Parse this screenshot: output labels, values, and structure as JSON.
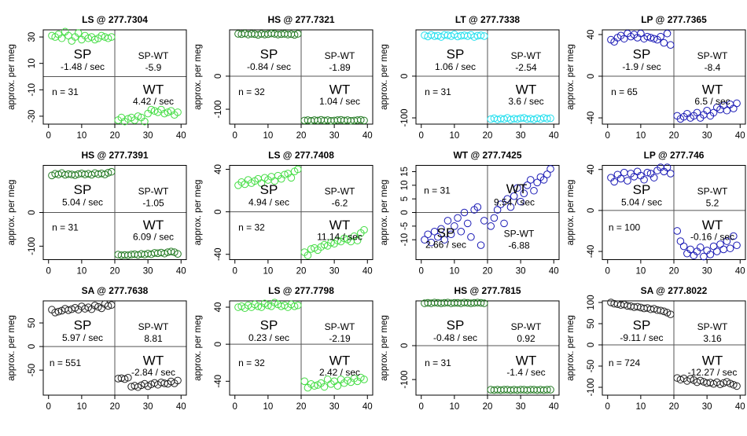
{
  "chart_data": [
    {
      "type": "scatter",
      "title": "LS @ 277.7304",
      "y_label": "approx. per meg",
      "color": "#44dd44",
      "x": [
        1,
        2,
        3,
        4,
        5,
        6,
        7,
        8,
        9,
        10,
        11,
        12,
        13,
        14,
        15,
        16,
        17,
        18,
        19,
        21,
        22,
        23,
        24,
        25,
        26,
        27,
        28,
        29,
        30,
        31,
        32,
        33,
        34,
        35,
        36,
        37,
        38,
        39
      ],
      "values": [
        31,
        30,
        32,
        29,
        34,
        31,
        27,
        30,
        33,
        28,
        31,
        29,
        30,
        28,
        29,
        31,
        30,
        29,
        30,
        -33,
        -31,
        -34,
        -32,
        -31,
        -33,
        -30,
        -31,
        -34,
        -28,
        -25,
        -26,
        -27,
        -25,
        -28,
        -27,
        -26,
        -29,
        -27
      ],
      "xlim": [
        -1.6,
        41.6
      ],
      "xticks": [
        0,
        10,
        20,
        30,
        40
      ],
      "ylim": [
        -36,
        35.4
      ],
      "yticks": [
        -30,
        -10,
        10,
        30
      ],
      "xline": 20,
      "yline": 0,
      "annotations": {
        "sp": "SP",
        "sp_rate": "-1.48 / sec",
        "sp_wt": "SP-WT",
        "sp_wt_value": "-5.9",
        "n": "n = 31",
        "wt": "WT",
        "wt_rate": "4.42 / sec"
      }
    },
    {
      "type": "scatter",
      "title": "HS @ 277.7321",
      "y_label": "approx. per meg",
      "color": "#237a23",
      "x": [
        1,
        2,
        3,
        4,
        5,
        6,
        7,
        8,
        9,
        10,
        11,
        12,
        13,
        14,
        15,
        16,
        17,
        18,
        19,
        21,
        22,
        23,
        24,
        25,
        26,
        27,
        28,
        29,
        30,
        31,
        32,
        33,
        34,
        35,
        36,
        37,
        38,
        39
      ],
      "values": [
        128,
        127,
        129,
        126,
        128,
        127,
        125,
        128,
        126,
        127,
        129,
        128,
        126,
        127,
        128,
        126,
        127,
        125,
        128,
        -134,
        -133,
        -135,
        -133,
        -134,
        -132,
        -134,
        -133,
        -135,
        -134,
        -133,
        -132,
        -134,
        -133,
        -135,
        -134,
        -133,
        -132,
        -134
      ],
      "xlim": [
        -1.6,
        41.6
      ],
      "xticks": [
        0,
        10,
        20,
        30,
        40
      ],
      "ylim": [
        -145,
        140
      ],
      "yticks": [
        -100,
        0
      ],
      "xline": 20,
      "yline": 0,
      "annotations": {
        "sp": "SP",
        "sp_rate": "-0.84 / sec",
        "sp_wt": "SP-WT",
        "sp_wt_value": "-1.89",
        "n": "n = 32",
        "wt": "WT",
        "wt_rate": "1.04 / sec"
      }
    },
    {
      "type": "scatter",
      "title": "LT @ 277.7338",
      "y_label": "approx. per meg",
      "color": "#22dfee",
      "x": [
        1,
        2,
        3,
        4,
        5,
        6,
        7,
        8,
        9,
        10,
        11,
        12,
        13,
        14,
        15,
        16,
        17,
        18,
        19,
        21,
        22,
        23,
        24,
        25,
        26,
        27,
        28,
        29,
        30,
        31,
        32,
        33,
        34,
        35,
        36,
        37,
        38,
        39
      ],
      "values": [
        98,
        95,
        99,
        96,
        97,
        94,
        99,
        98,
        96,
        100,
        95,
        97,
        98,
        96,
        99,
        94,
        97,
        98,
        96,
        -103,
        -101,
        -104,
        -102,
        -103,
        -100,
        -104,
        -102,
        -103,
        -101,
        -100,
        -103,
        -102,
        -104,
        -101,
        -103,
        -100,
        -102,
        -101
      ],
      "xlim": [
        -1.6,
        41.6
      ],
      "xticks": [
        0,
        10,
        20,
        30,
        40
      ],
      "ylim": [
        -115,
        111
      ],
      "yticks": [
        -100,
        0
      ],
      "xline": 20,
      "yline": 0,
      "annotations": {
        "sp": "SP",
        "sp_rate": "1.06 / sec",
        "sp_wt": "SP-WT",
        "sp_wt_value": "-2.54",
        "n": "n = 31",
        "wt": "WT",
        "wt_rate": "3.6 / sec"
      }
    },
    {
      "type": "scatter",
      "title": "LP @ 277.7365",
      "y_label": "approx. per meg",
      "color": "#1a1ab5",
      "x": [
        1,
        2,
        3,
        4,
        5,
        6,
        7,
        8,
        9,
        10,
        11,
        12,
        13,
        14,
        15,
        16,
        17,
        18,
        19,
        21,
        22,
        23,
        24,
        25,
        26,
        27,
        28,
        29,
        30,
        31,
        32,
        33,
        34,
        35,
        36,
        37,
        38,
        39
      ],
      "values": [
        35,
        33,
        37,
        39,
        36,
        41,
        38,
        40,
        37,
        41,
        36,
        38,
        37,
        36,
        35,
        38,
        32,
        41,
        30,
        -38,
        -41,
        -39,
        -36,
        -40,
        -38,
        -35,
        -40,
        -37,
        -33,
        -38,
        -35,
        -30,
        -32,
        -28,
        -33,
        -27,
        -31,
        -26
      ],
      "xlim": [
        -1.6,
        41.6
      ],
      "xticks": [
        0,
        10,
        20,
        30,
        40
      ],
      "ylim": [
        -46,
        44.5
      ],
      "yticks": [
        -40,
        0,
        40
      ],
      "xline": 20,
      "yline": 0,
      "annotations": {
        "sp": "SP",
        "sp_rate": "-1.9 / sec",
        "sp_wt": "SP-WT",
        "sp_wt_value": "-8.4",
        "n": "n = 65",
        "wt": "WT",
        "wt_rate": "6.5 / sec"
      }
    },
    {
      "type": "scatter",
      "title": "HS @ 277.7391",
      "y_label": "approx. per meg",
      "color": "#237a23",
      "x": [
        1,
        2,
        3,
        4,
        5,
        6,
        7,
        8,
        9,
        10,
        11,
        12,
        13,
        14,
        15,
        16,
        17,
        18,
        19,
        21,
        22,
        23,
        24,
        25,
        26,
        27,
        28,
        29,
        30,
        31,
        32,
        33,
        34,
        35,
        36,
        37,
        38,
        39
      ],
      "values": [
        110,
        115,
        113,
        117,
        112,
        114,
        113,
        111,
        114,
        116,
        113,
        115,
        112,
        117,
        114,
        116,
        113,
        118,
        121,
        -125,
        -127,
        -126,
        -127,
        -125,
        -124,
        -126,
        -123,
        -125,
        -122,
        -124,
        -120,
        -121,
        -119,
        -122,
        -118,
        -116,
        -118,
        -123
      ],
      "xlim": [
        -1.6,
        41.6
      ],
      "xticks": [
        0,
        10,
        20,
        30,
        40
      ],
      "ylim": [
        -140,
        140
      ],
      "yticks": [
        -100,
        0
      ],
      "xline": 20,
      "yline": 0,
      "annotations": {
        "sp": "SP",
        "sp_rate": "5.04 / sec",
        "sp_wt": "SP-WT",
        "sp_wt_value": "-1.05",
        "n": "n = 31",
        "wt": "WT",
        "wt_rate": "6.09 / sec"
      }
    },
    {
      "type": "scatter",
      "title": "LS @ 277.7408",
      "y_label": "approx. per meg",
      "color": "#44dd44",
      "x": [
        1,
        2,
        3,
        4,
        5,
        6,
        7,
        8,
        9,
        10,
        11,
        12,
        13,
        14,
        15,
        16,
        17,
        18,
        19,
        21,
        22,
        23,
        24,
        25,
        26,
        27,
        28,
        29,
        30,
        31,
        32,
        33,
        34,
        35,
        36,
        37,
        38,
        39
      ],
      "values": [
        25,
        28,
        26,
        30,
        27,
        29,
        31,
        27,
        32,
        30,
        33,
        29,
        34,
        31,
        35,
        36,
        32,
        38,
        40,
        -38,
        -41,
        -35,
        -34,
        -36,
        -33,
        -31,
        -32,
        -29,
        -30,
        -27,
        -28,
        -25,
        -26,
        -28,
        -23,
        -27,
        -20,
        -17
      ],
      "xlim": [
        -1.6,
        41.6
      ],
      "xticks": [
        0,
        10,
        20,
        30,
        40
      ],
      "ylim": [
        -45,
        43.7
      ],
      "yticks": [
        -40,
        0,
        40
      ],
      "xline": 20,
      "yline": 0,
      "annotations": {
        "sp": "SP",
        "sp_rate": "4.94 / sec",
        "sp_wt": "SP-WT",
        "sp_wt_value": "-6.2",
        "n": "n = 32",
        "wt": "WT",
        "wt_rate": "11.14 / sec"
      }
    },
    {
      "type": "scatter",
      "title": "WT @ 277.7425",
      "y_label": "approx. per meg",
      "color": "#1a1ab5",
      "x": [
        1,
        2,
        3,
        4,
        5,
        6,
        7,
        8,
        9,
        10,
        11,
        12,
        13,
        14,
        15,
        16,
        17,
        18,
        19,
        21,
        22,
        23,
        24,
        25,
        26,
        27,
        28,
        29,
        30,
        31,
        32,
        33,
        34,
        35,
        36,
        37,
        38,
        39
      ],
      "values": [
        -10,
        -8,
        -11,
        -7,
        -9,
        -6,
        -10,
        -3,
        -8,
        -5,
        -2,
        -7,
        0,
        -4,
        -9,
        1,
        2,
        -12,
        -3,
        -5,
        -2,
        1,
        3,
        -4,
        5,
        2,
        6,
        9,
        4,
        7,
        10,
        12,
        8,
        11,
        13,
        12,
        14,
        16
      ],
      "xlim": [
        -1.6,
        41.6
      ],
      "xticks": [
        0,
        10,
        20,
        30,
        40
      ],
      "ylim": [
        -17.3,
        17.3
      ],
      "yticks": [
        -10,
        -5,
        0,
        5,
        10,
        15
      ],
      "xline": 20,
      "yline": 0,
      "annotations": {
        "sp": "SP",
        "sp_rate": "2.66 / sec",
        "sp_wt": "SP-WT",
        "sp_wt_value": "-6.88",
        "n": "n = 31",
        "wt": "WT",
        "wt_rate": "9.54 / sec"
      }
    },
    {
      "type": "scatter",
      "title": "LP @ 277.746",
      "y_label": "approx. per meg",
      "color": "#1a1ab5",
      "x": [
        1,
        2,
        3,
        4,
        5,
        6,
        7,
        8,
        9,
        10,
        11,
        12,
        13,
        14,
        15,
        16,
        17,
        18,
        19,
        21,
        22,
        23,
        24,
        25,
        26,
        27,
        28,
        29,
        30,
        31,
        32,
        33,
        34,
        35,
        36,
        37,
        38,
        39
      ],
      "values": [
        32,
        28,
        35,
        31,
        37,
        29,
        36,
        33,
        38,
        34,
        30,
        37,
        36,
        32,
        39,
        42,
        38,
        42,
        36,
        -20,
        -30,
        -35,
        -42,
        -38,
        -44,
        -40,
        -36,
        -45,
        -39,
        -43,
        -35,
        -40,
        -33,
        -38,
        -30,
        -37,
        -25,
        -34
      ],
      "xlim": [
        -1.6,
        41.6
      ],
      "xticks": [
        0,
        10,
        20,
        30,
        40
      ],
      "ylim": [
        -48,
        44
      ],
      "yticks": [
        -40,
        0,
        40
      ],
      "xline": 20,
      "yline": 0,
      "annotations": {
        "sp": "SP",
        "sp_rate": "5.04 / sec",
        "sp_wt": "SP-WT",
        "sp_wt_value": "5.2",
        "n": "n = 100",
        "wt": "WT",
        "wt_rate": "-0.16 / sec"
      }
    },
    {
      "type": "scatter",
      "title": "SA @ 277.7638",
      "y_label": "approx. per meg",
      "color": "#222222",
      "x": [
        1,
        2,
        3,
        4,
        5,
        6,
        7,
        8,
        9,
        10,
        11,
        12,
        13,
        14,
        15,
        16,
        17,
        18,
        19,
        21,
        22,
        23,
        24,
        25,
        26,
        27,
        28,
        29,
        30,
        31,
        32,
        33,
        34,
        35,
        36,
        37,
        38,
        39
      ],
      "values": [
        78,
        72,
        74,
        76,
        80,
        77,
        79,
        82,
        78,
        85,
        80,
        83,
        79,
        87,
        84,
        81,
        90,
        86,
        88,
        -68,
        -67,
        -69,
        -66,
        -85,
        -83,
        -86,
        -82,
        -79,
        -84,
        -80,
        -77,
        -81,
        -76,
        -78,
        -79,
        -74,
        -78,
        -72
      ],
      "xlim": [
        -1.6,
        41.6
      ],
      "xticks": [
        0,
        10,
        20,
        30,
        40
      ],
      "ylim": [
        -103,
        96.7
      ],
      "yticks": [
        -50,
        0,
        50
      ],
      "xline": 20,
      "yline": 0,
      "annotations": {
        "sp": "SP",
        "sp_rate": "5.97 / sec",
        "sp_wt": "SP-WT",
        "sp_wt_value": "8.81",
        "n": "n = 551",
        "wt": "WT",
        "wt_rate": "-2.84 / sec"
      }
    },
    {
      "type": "scatter",
      "title": "LS @ 277.7798",
      "y_label": "approx. per meg",
      "color": "#44dd44",
      "x": [
        1,
        2,
        3,
        4,
        5,
        6,
        7,
        8,
        9,
        10,
        11,
        12,
        13,
        14,
        15,
        16,
        17,
        18,
        19,
        21,
        22,
        23,
        24,
        25,
        26,
        27,
        28,
        29,
        30,
        31,
        32,
        33,
        34,
        35,
        36,
        37,
        38,
        39
      ],
      "values": [
        40,
        41,
        39,
        42,
        40,
        43,
        41,
        40,
        44,
        42,
        41,
        45,
        43,
        41,
        42,
        40,
        43,
        41,
        42,
        -40,
        -47,
        -43,
        -45,
        -44,
        -42,
        -46,
        -38,
        -43,
        -40,
        -45,
        -38,
        -42,
        -39,
        -41,
        -37,
        -40,
        -36,
        -38
      ],
      "xlim": [
        -1.6,
        41.6
      ],
      "xticks": [
        0,
        10,
        20,
        30,
        40
      ],
      "ylim": [
        -55,
        46.8
      ],
      "yticks": [
        -40,
        0,
        40
      ],
      "xline": 20,
      "yline": 0,
      "annotations": {
        "sp": "SP",
        "sp_rate": "0.23 / sec",
        "sp_wt": "SP-WT",
        "sp_wt_value": "-2.19",
        "n": "n = 32",
        "wt": "WT",
        "wt_rate": "2.42 / sec"
      }
    },
    {
      "type": "scatter",
      "title": "HS @ 277.7815",
      "y_label": "approx. per meg",
      "color": "#237a23",
      "x": [
        1,
        2,
        3,
        4,
        5,
        6,
        7,
        8,
        9,
        10,
        11,
        12,
        13,
        14,
        15,
        16,
        17,
        18,
        19,
        21,
        22,
        23,
        24,
        25,
        26,
        27,
        28,
        29,
        30,
        31,
        32,
        33,
        34,
        35,
        36,
        37,
        38,
        39
      ],
      "values": [
        125,
        126,
        125,
        127,
        126,
        125,
        126,
        127,
        125,
        126,
        126,
        125,
        127,
        126,
        125,
        126,
        127,
        126,
        125,
        -130,
        -131,
        -130,
        -131,
        -130,
        -130,
        -131,
        -130,
        -131,
        -130,
        -130,
        -131,
        -130,
        -130,
        -131,
        -130,
        -131,
        -130,
        -130
      ],
      "xlim": [
        -1.6,
        41.6
      ],
      "xticks": [
        0,
        10,
        20,
        30,
        40
      ],
      "ylim": [
        -146,
        132
      ],
      "yticks": [
        -100,
        0
      ],
      "xline": 20,
      "yline": 0,
      "annotations": {
        "sp": "SP",
        "sp_rate": "-0.48 / sec",
        "sp_wt": "SP-WT",
        "sp_wt_value": "0.92",
        "n": "n = 31",
        "wt": "WT",
        "wt_rate": "-1.4 / sec"
      }
    },
    {
      "type": "scatter",
      "title": "SA @ 277.8022",
      "y_label": "approx. per meg",
      "color": "#222222",
      "x": [
        1,
        2,
        3,
        4,
        5,
        6,
        7,
        8,
        9,
        10,
        11,
        12,
        13,
        14,
        15,
        16,
        17,
        18,
        19,
        21,
        22,
        23,
        24,
        25,
        26,
        27,
        28,
        29,
        30,
        31,
        32,
        33,
        34,
        35,
        36,
        37,
        38,
        39
      ],
      "values": [
        100,
        97,
        96,
        94,
        95,
        92,
        91,
        89,
        90,
        88,
        86,
        87,
        84,
        85,
        82,
        81,
        79,
        76,
        72,
        -78,
        -82,
        -79,
        -85,
        -80,
        -83,
        -88,
        -84,
        -87,
        -90,
        -89,
        -92,
        -88,
        -93,
        -90,
        -87,
        -91,
        -94,
        -97
      ],
      "xlim": [
        -1.6,
        41.6
      ],
      "xticks": [
        0,
        10,
        20,
        30,
        40
      ],
      "ylim": [
        -118.5,
        103.7
      ],
      "yticks": [
        -100,
        -50,
        0,
        50,
        100
      ],
      "xline": 20,
      "yline": 0,
      "annotations": {
        "sp": "SP",
        "sp_rate": "-9.11 / sec",
        "sp_wt": "SP-WT",
        "sp_wt_value": "3.16",
        "n": "n = 724",
        "wt": "WT",
        "wt_rate": "-12.27 / sec"
      }
    }
  ]
}
